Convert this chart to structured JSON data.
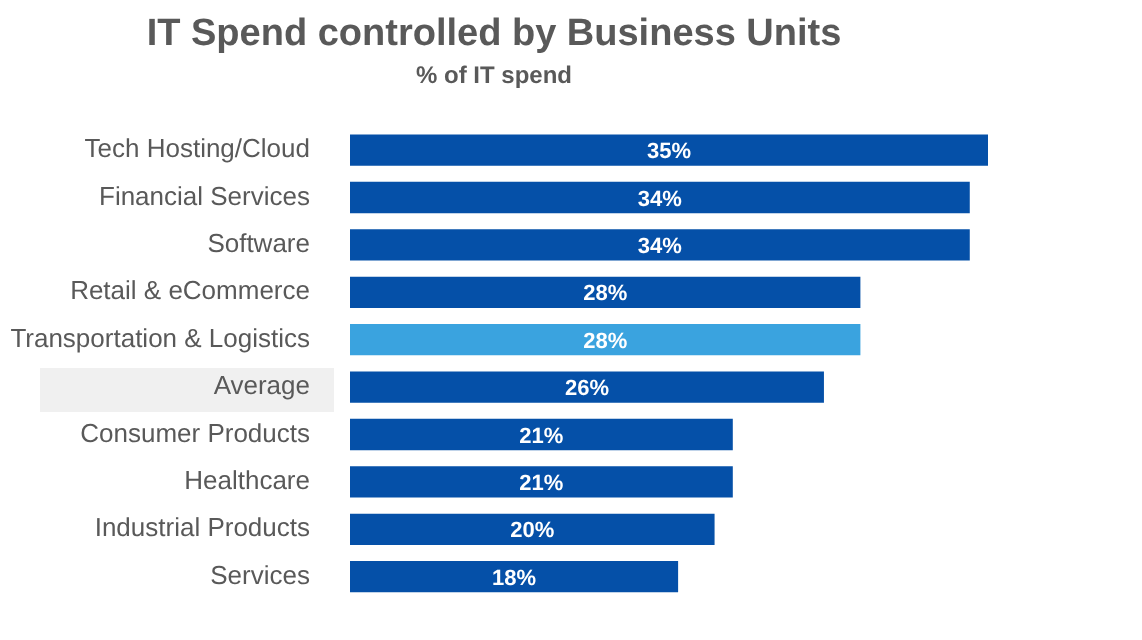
{
  "chart_data": {
    "type": "bar",
    "orientation": "horizontal",
    "title": "IT Spend controlled by Business Units",
    "subtitle": "% of IT spend",
    "categories": [
      "Tech Hosting/Cloud",
      "Financial Services",
      "Software",
      "Retail & eCommerce",
      "Transportation & Logistics",
      "Average",
      "Consumer Products",
      "Healthcare",
      "Industrial Products",
      "Services"
    ],
    "values": [
      35,
      34,
      34,
      28,
      28,
      26,
      21,
      21,
      20,
      18
    ],
    "colors": [
      "#0550a8",
      "#0550a8",
      "#0550a8",
      "#0550a8",
      "#3aa3df",
      "#0550a8",
      "#0550a8",
      "#0550a8",
      "#0550a8",
      "#0550a8"
    ],
    "value_labels": [
      "35%",
      "34%",
      "34%",
      "28%",
      "28%",
      "26%",
      "21%",
      "21%",
      "20%",
      "18%"
    ],
    "legend": false
  }
}
